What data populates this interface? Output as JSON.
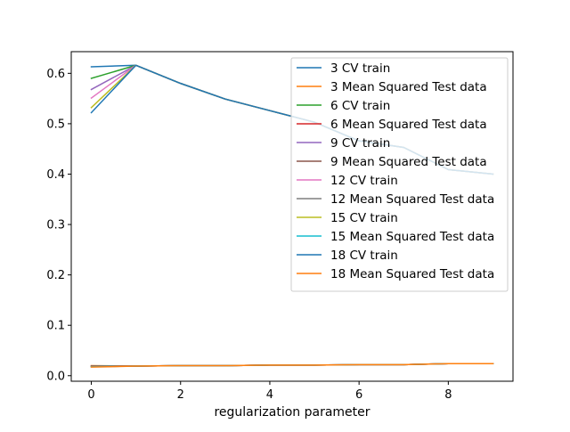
{
  "chart_data": {
    "type": "line",
    "title": "",
    "xlabel": "regularization parameter",
    "ylabel": "",
    "xlim": [
      -0.45,
      9.45
    ],
    "ylim": [
      -0.011,
      0.643
    ],
    "xticks": [
      0,
      2,
      4,
      6,
      8
    ],
    "yticks": [
      0.0,
      0.1,
      0.2,
      0.3,
      0.4,
      0.5,
      0.6
    ],
    "ytick_labels": [
      "0.0",
      "0.1",
      "0.2",
      "0.3",
      "0.4",
      "0.5",
      "0.6"
    ],
    "x": [
      0,
      1,
      2,
      3,
      4,
      5,
      6,
      7,
      8,
      9
    ],
    "legend_position": "upper right",
    "grid": false,
    "series": [
      {
        "name": "3 CV train",
        "color": "#1f77b4",
        "values": [
          0.613,
          0.616,
          0.58,
          0.549,
          0.526,
          0.503,
          0.466,
          0.453,
          0.409,
          0.4
        ]
      },
      {
        "name": "3 Mean Squared Test data",
        "color": "#ff7f0e",
        "values": [
          0.02,
          0.019,
          0.02,
          0.02,
          0.021,
          0.021,
          0.022,
          0.022,
          0.024,
          0.024
        ]
      },
      {
        "name": "6 CV train",
        "color": "#2ca02c",
        "values": [
          0.59,
          0.616,
          0.58,
          0.549,
          0.526,
          0.503,
          0.466,
          0.453,
          0.409,
          0.4
        ]
      },
      {
        "name": "6 Mean Squared Test data",
        "color": "#d62728",
        "values": [
          0.019,
          0.019,
          0.02,
          0.02,
          0.021,
          0.021,
          0.022,
          0.022,
          0.024,
          0.024
        ]
      },
      {
        "name": "9 CV train",
        "color": "#9467bd",
        "values": [
          0.568,
          0.616,
          0.58,
          0.549,
          0.526,
          0.503,
          0.466,
          0.453,
          0.409,
          0.4
        ]
      },
      {
        "name": "9 Mean Squared Test data",
        "color": "#8c564b",
        "values": [
          0.019,
          0.019,
          0.02,
          0.02,
          0.021,
          0.021,
          0.022,
          0.022,
          0.024,
          0.024
        ]
      },
      {
        "name": "12 CV train",
        "color": "#e377c2",
        "values": [
          0.551,
          0.616,
          0.58,
          0.549,
          0.526,
          0.503,
          0.466,
          0.453,
          0.409,
          0.4
        ]
      },
      {
        "name": "12 Mean Squared Test data",
        "color": "#7f7f7f",
        "values": [
          0.018,
          0.019,
          0.02,
          0.02,
          0.021,
          0.021,
          0.022,
          0.022,
          0.024,
          0.024
        ]
      },
      {
        "name": "15 CV train",
        "color": "#bcbd22",
        "values": [
          0.532,
          0.616,
          0.58,
          0.549,
          0.526,
          0.503,
          0.466,
          0.453,
          0.409,
          0.4
        ]
      },
      {
        "name": "15 Mean Squared Test data",
        "color": "#17becf",
        "values": [
          0.018,
          0.019,
          0.02,
          0.02,
          0.021,
          0.021,
          0.022,
          0.022,
          0.024,
          0.024
        ]
      },
      {
        "name": "18 CV train",
        "color": "#1f77b4",
        "values": [
          0.522,
          0.616,
          0.58,
          0.549,
          0.526,
          0.503,
          0.466,
          0.453,
          0.409,
          0.4
        ]
      },
      {
        "name": "18 Mean Squared Test data",
        "color": "#ff7f0e",
        "values": [
          0.017,
          0.019,
          0.02,
          0.02,
          0.021,
          0.021,
          0.022,
          0.022,
          0.024,
          0.024
        ]
      }
    ]
  }
}
